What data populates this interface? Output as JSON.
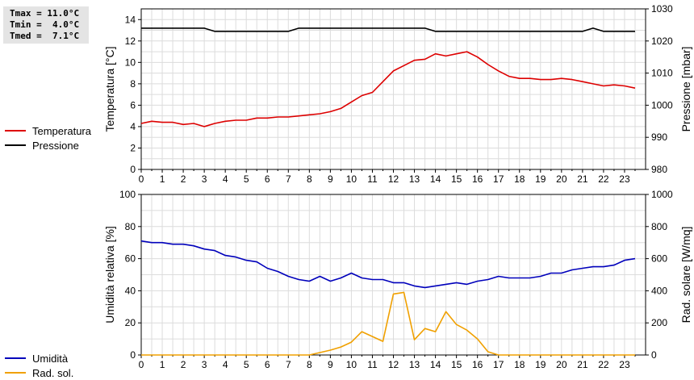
{
  "stats": {
    "tmax": "Tmax = 11.0°C",
    "tmin": "Tmin =  4.0°C",
    "tmed": "Tmed =  7.1°C"
  },
  "chart_data": [
    {
      "type": "line",
      "xlim": [
        0,
        24
      ],
      "xticks": [
        0,
        1,
        2,
        3,
        4,
        5,
        6,
        7,
        8,
        9,
        10,
        11,
        12,
        13,
        14,
        15,
        16,
        17,
        18,
        19,
        20,
        21,
        22,
        23
      ],
      "grid": true,
      "legend": "left",
      "y_left": {
        "label": "Temperatura [°C]",
        "lim": [
          0,
          15
        ],
        "ticks": [
          0,
          2,
          4,
          6,
          8,
          10,
          12,
          14
        ]
      },
      "y_right": {
        "label": "Pressione [mbar]",
        "lim": [
          980,
          1030
        ],
        "ticks": [
          980,
          990,
          1000,
          1010,
          1020,
          1030
        ]
      },
      "series": [
        {
          "name": "Temperatura",
          "axis": "left",
          "color": "#dd0000",
          "x": [
            0,
            0.5,
            1,
            1.5,
            2,
            2.5,
            3,
            3.5,
            4,
            4.5,
            5,
            5.5,
            6,
            6.5,
            7,
            7.5,
            8,
            8.5,
            9,
            9.5,
            10,
            10.5,
            11,
            11.5,
            12,
            12.5,
            13,
            13.5,
            14,
            14.5,
            15,
            15.5,
            16,
            16.5,
            17,
            17.5,
            18,
            18.5,
            19,
            19.5,
            20,
            20.5,
            21,
            21.5,
            22,
            22.5,
            23,
            23.5
          ],
          "y": [
            4.3,
            4.5,
            4.4,
            4.4,
            4.2,
            4.3,
            4.0,
            4.3,
            4.5,
            4.6,
            4.6,
            4.8,
            4.8,
            4.9,
            4.9,
            5.0,
            5.1,
            5.2,
            5.4,
            5.7,
            6.3,
            6.9,
            7.2,
            8.2,
            9.2,
            9.7,
            10.2,
            10.3,
            10.8,
            10.6,
            10.8,
            11.0,
            10.5,
            9.8,
            9.2,
            8.7,
            8.5,
            8.5,
            8.4,
            8.4,
            8.5,
            8.4,
            8.2,
            8.0,
            7.8,
            7.9,
            7.8,
            7.6
          ]
        },
        {
          "name": "Pressione",
          "axis": "right",
          "color": "#000000",
          "x": [
            0,
            0.5,
            1,
            1.5,
            2,
            2.5,
            3,
            3.5,
            4,
            4.5,
            5,
            5.5,
            6,
            6.5,
            7,
            7.5,
            8,
            8.5,
            9,
            9.5,
            10,
            10.5,
            11,
            11.5,
            12,
            12.5,
            13,
            13.5,
            14,
            14.5,
            15,
            15.5,
            16,
            16.5,
            17,
            17.5,
            18,
            18.5,
            19,
            19.5,
            20,
            20.5,
            21,
            21.5,
            22,
            22.5,
            23,
            23.5
          ],
          "y": [
            1024,
            1024,
            1024,
            1024,
            1024,
            1024,
            1024,
            1023,
            1023,
            1023,
            1023,
            1023,
            1023,
            1023,
            1023,
            1024,
            1024,
            1024,
            1024,
            1024,
            1024,
            1024,
            1024,
            1024,
            1024,
            1024,
            1024,
            1024,
            1023,
            1023,
            1023,
            1023,
            1023,
            1023,
            1023,
            1023,
            1023,
            1023,
            1023,
            1023,
            1023,
            1023,
            1023,
            1024,
            1023,
            1023,
            1023,
            1023
          ]
        }
      ]
    },
    {
      "type": "line",
      "xlim": [
        0,
        24
      ],
      "xticks": [
        0,
        1,
        2,
        3,
        4,
        5,
        6,
        7,
        8,
        9,
        10,
        11,
        12,
        13,
        14,
        15,
        16,
        17,
        18,
        19,
        20,
        21,
        22,
        23
      ],
      "grid": true,
      "legend": "left",
      "y_left": {
        "label": "Umidità relativa [%]",
        "lim": [
          0,
          100
        ],
        "ticks": [
          0,
          20,
          40,
          60,
          80,
          100
        ]
      },
      "y_right": {
        "label": "Rad. solare [W/mq]",
        "lim": [
          0,
          1000
        ],
        "ticks": [
          0,
          200,
          400,
          600,
          800,
          1000
        ]
      },
      "series": [
        {
          "name": "Umidità",
          "axis": "left",
          "color": "#0000bb",
          "x": [
            0,
            0.5,
            1,
            1.5,
            2,
            2.5,
            3,
            3.5,
            4,
            4.5,
            5,
            5.5,
            6,
            6.5,
            7,
            7.5,
            8,
            8.5,
            9,
            9.5,
            10,
            10.5,
            11,
            11.5,
            12,
            12.5,
            13,
            13.5,
            14,
            14.5,
            15,
            15.5,
            16,
            16.5,
            17,
            17.5,
            18,
            18.5,
            19,
            19.5,
            20,
            20.5,
            21,
            21.5,
            22,
            22.5,
            23,
            23.5
          ],
          "y": [
            71,
            70,
            70,
            69,
            69,
            68,
            66,
            65,
            62,
            61,
            59,
            58,
            54,
            52,
            49,
            47,
            46,
            49,
            46,
            48,
            51,
            48,
            47,
            47,
            45,
            45,
            43,
            42,
            43,
            44,
            45,
            44,
            46,
            47,
            49,
            48,
            48,
            48,
            49,
            51,
            51,
            53,
            54,
            55,
            55,
            56,
            59,
            60
          ]
        },
        {
          "name": "Rad. sol.",
          "axis": "right",
          "color": "#f0a000",
          "x": [
            0,
            1,
            2,
            3,
            4,
            5,
            6,
            7,
            8,
            8.5,
            9,
            9.5,
            10,
            10.5,
            11,
            11.5,
            12,
            12.5,
            13,
            13.5,
            14,
            14.5,
            15,
            15.5,
            16,
            16.5,
            17,
            17.5,
            18,
            19,
            20,
            21,
            22,
            23,
            23.5
          ],
          "y": [
            0,
            0,
            0,
            0,
            0,
            0,
            0,
            0,
            0,
            15,
            30,
            50,
            80,
            145,
            115,
            85,
            380,
            390,
            95,
            165,
            145,
            270,
            190,
            155,
            100,
            20,
            0,
            0,
            0,
            0,
            0,
            0,
            0,
            0,
            0
          ]
        }
      ]
    }
  ]
}
